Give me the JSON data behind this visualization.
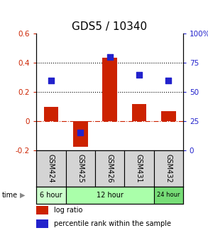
{
  "title": "GDS5 / 10340",
  "samples": [
    "GSM424",
    "GSM425",
    "GSM426",
    "GSM431",
    "GSM432"
  ],
  "log_ratio": [
    0.1,
    -0.175,
    0.435,
    0.12,
    0.07
  ],
  "percentile_rank": [
    60,
    15,
    80,
    65,
    60
  ],
  "ylim_left": [
    -0.2,
    0.6
  ],
  "ylim_right": [
    0,
    100
  ],
  "yticks_left": [
    -0.2,
    0.0,
    0.2,
    0.4,
    0.6
  ],
  "yticks_right": [
    0,
    25,
    50,
    75,
    100
  ],
  "ytick_labels_left": [
    "-0.2",
    "0",
    "0.2",
    "0.4",
    "0.6"
  ],
  "ytick_labels_right": [
    "0",
    "25",
    "50",
    "75",
    "100%"
  ],
  "hline_dotted": [
    0.2,
    0.4
  ],
  "hline_dashed_red": 0.0,
  "bar_color": "#cc2200",
  "dot_color": "#2222cc",
  "time_groups": [
    {
      "label": "6 hour",
      "spans": [
        0
      ],
      "color": "#ccffcc"
    },
    {
      "label": "12 hour",
      "spans": [
        1,
        2,
        3
      ],
      "color": "#aaffaa"
    },
    {
      "label": "24 hour",
      "spans": [
        4
      ],
      "color": "#77dd77"
    }
  ],
  "bar_width": 0.5,
  "dot_size": 40,
  "legend_log_ratio": "log ratio",
  "legend_percentile": "percentile rank within the sample",
  "time_label": "time",
  "title_fontsize": 11,
  "tick_fontsize": 7.5,
  "label_fontsize": 7,
  "time_fontsize": 7
}
